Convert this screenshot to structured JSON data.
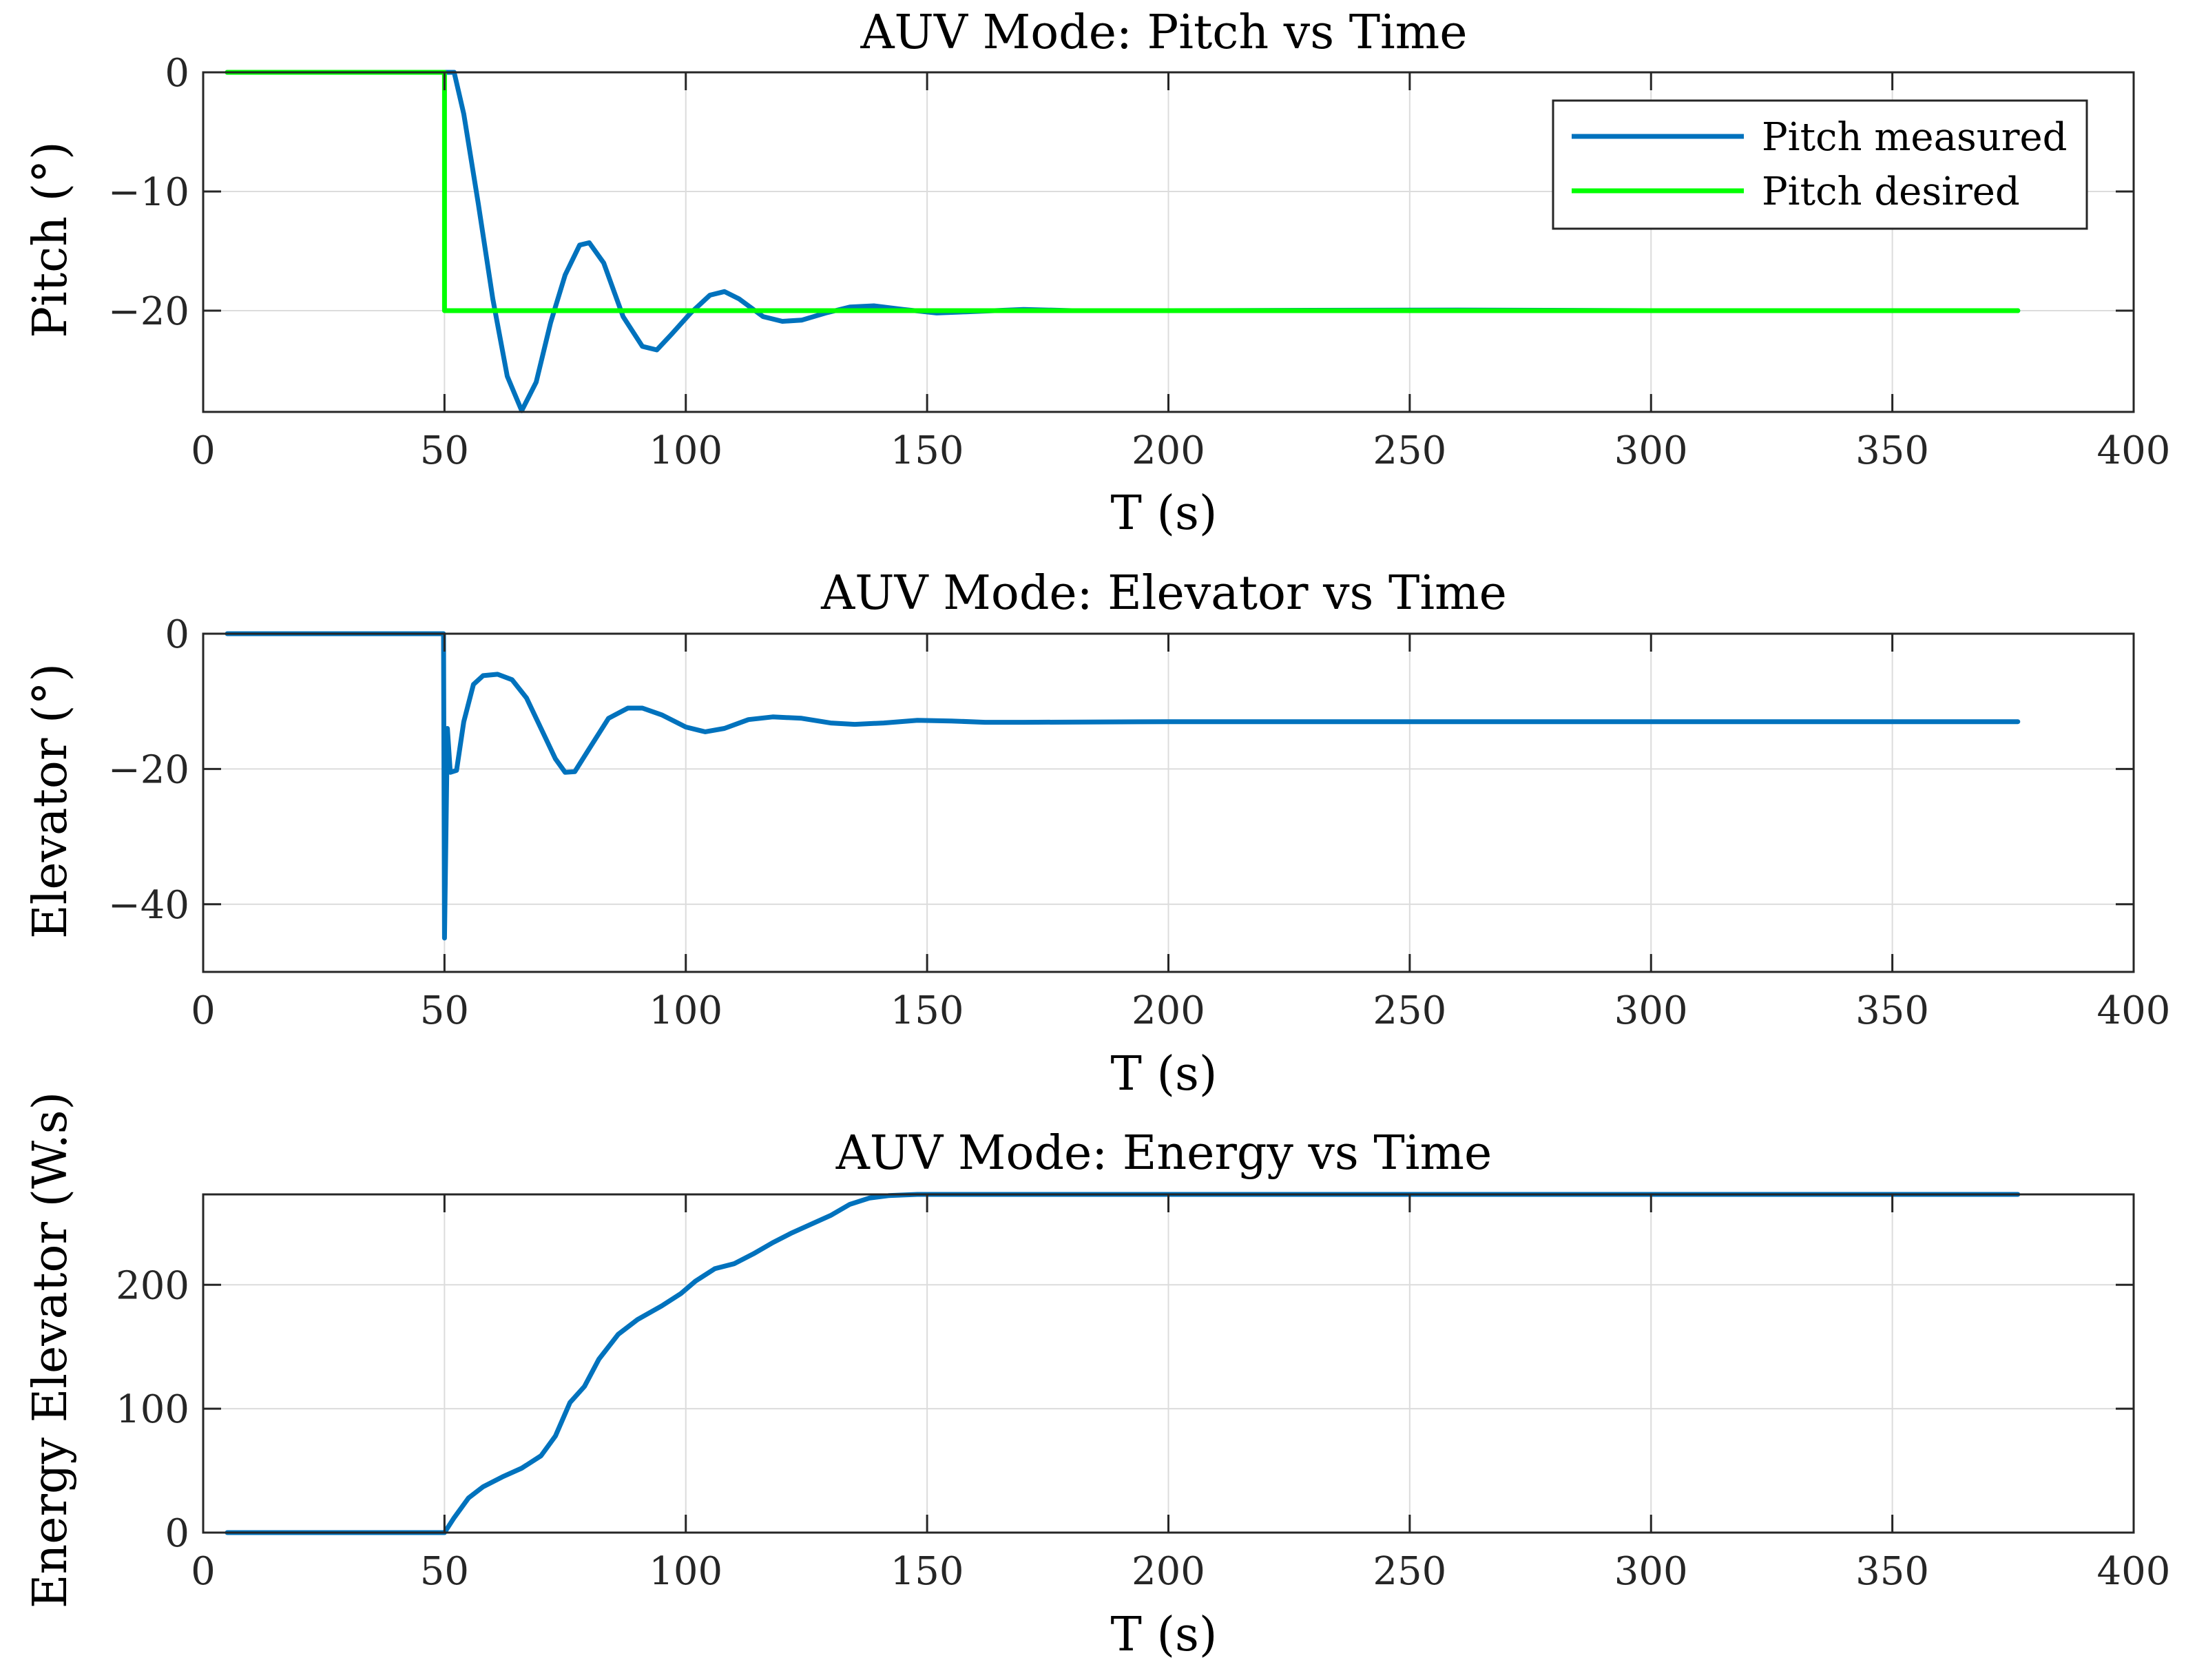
{
  "chart_data": [
    {
      "type": "line",
      "title": "AUV Mode: Pitch vs Time",
      "xlabel": "T (s)",
      "ylabel": "Pitch (°)",
      "xlim": [
        0,
        400
      ],
      "ylim": [
        -28.5,
        0
      ],
      "xticks": [
        0,
        50,
        100,
        150,
        200,
        250,
        300,
        350,
        400
      ],
      "yticks": [
        0,
        -10,
        -20
      ],
      "ytick_labels": [
        "0",
        "−10",
        "−20"
      ],
      "grid": true,
      "legend": "top-right",
      "series": [
        {
          "name": "Pitch measured",
          "color": "#0072BD",
          "points": [
            [
              5,
              0
            ],
            [
              50,
              0
            ],
            [
              52,
              0
            ],
            [
              54,
              -3.5
            ],
            [
              57,
              -11
            ],
            [
              60,
              -19
            ],
            [
              63,
              -25.5
            ],
            [
              66,
              -28.4
            ],
            [
              69,
              -26
            ],
            [
              72,
              -21
            ],
            [
              75,
              -17
            ],
            [
              78,
              -14.5
            ],
            [
              80,
              -14.3
            ],
            [
              83,
              -16
            ],
            [
              87,
              -20.5
            ],
            [
              91,
              -23
            ],
            [
              94,
              -23.3
            ],
            [
              97,
              -22
            ],
            [
              101,
              -20.2
            ],
            [
              105,
              -18.7
            ],
            [
              108,
              -18.4
            ],
            [
              111,
              -19
            ],
            [
              116,
              -20.5
            ],
            [
              120,
              -20.9
            ],
            [
              124,
              -20.8
            ],
            [
              129,
              -20.2
            ],
            [
              134,
              -19.7
            ],
            [
              139,
              -19.6
            ],
            [
              145,
              -19.9
            ],
            [
              152,
              -20.2
            ],
            [
              158,
              -20.1
            ],
            [
              164,
              -20
            ],
            [
              170,
              -19.9
            ],
            [
              180,
              -20
            ],
            [
              200,
              -20
            ],
            [
              260,
              -19.95
            ],
            [
              300,
              -20
            ],
            [
              376,
              -20
            ]
          ]
        },
        {
          "name": "Pitch desired",
          "color": "#00FF00",
          "points": [
            [
              5,
              0
            ],
            [
              50,
              0
            ],
            [
              50,
              -20
            ],
            [
              376,
              -20
            ]
          ]
        }
      ]
    },
    {
      "type": "line",
      "title": "AUV Mode: Elevator vs Time",
      "xlabel": "T (s)",
      "ylabel": "Elevator (°)",
      "xlim": [
        0,
        400
      ],
      "ylim": [
        -50,
        0
      ],
      "xticks": [
        0,
        50,
        100,
        150,
        200,
        250,
        300,
        350,
        400
      ],
      "yticks": [
        0,
        -20,
        -40
      ],
      "ytick_labels": [
        "0",
        "−20",
        "−40"
      ],
      "grid": true,
      "series": [
        {
          "name": "Elevator",
          "color": "#0072BD",
          "points": [
            [
              5,
              0
            ],
            [
              49.8,
              0
            ],
            [
              50,
              -45
            ],
            [
              50.6,
              -14
            ],
            [
              51.2,
              -20.5
            ],
            [
              52.5,
              -20.2
            ],
            [
              54,
              -13
            ],
            [
              56,
              -7.5
            ],
            [
              58,
              -6.2
            ],
            [
              61,
              -6
            ],
            [
              64,
              -6.8
            ],
            [
              67,
              -9.5
            ],
            [
              70,
              -14
            ],
            [
              73,
              -18.5
            ],
            [
              75,
              -20.5
            ],
            [
              77,
              -20.4
            ],
            [
              80,
              -17
            ],
            [
              84,
              -12.5
            ],
            [
              88,
              -11
            ],
            [
              91,
              -11
            ],
            [
              95,
              -12
            ],
            [
              100,
              -13.8
            ],
            [
              104,
              -14.5
            ],
            [
              108,
              -14
            ],
            [
              113,
              -12.7
            ],
            [
              118,
              -12.3
            ],
            [
              124,
              -12.5
            ],
            [
              130,
              -13.2
            ],
            [
              135,
              -13.4
            ],
            [
              141,
              -13.2
            ],
            [
              148,
              -12.8
            ],
            [
              155,
              -12.9
            ],
            [
              162,
              -13.1
            ],
            [
              170,
              -13.1
            ],
            [
              200,
              -13
            ],
            [
              250,
              -13
            ],
            [
              300,
              -13
            ],
            [
              350,
              -13
            ],
            [
              376,
              -13
            ]
          ]
        }
      ]
    },
    {
      "type": "line",
      "title": "AUV Mode: Energy vs Time",
      "xlabel": "T (s)",
      "ylabel": "Energy Elevator (W.s)",
      "xlim": [
        0,
        400
      ],
      "ylim": [
        0,
        273
      ],
      "xticks": [
        0,
        50,
        100,
        150,
        200,
        250,
        300,
        350,
        400
      ],
      "yticks": [
        0,
        100,
        200
      ],
      "ytick_labels": [
        "0",
        "100",
        "200"
      ],
      "grid": true,
      "series": [
        {
          "name": "Energy Elevator",
          "color": "#0072BD",
          "points": [
            [
              5,
              0
            ],
            [
              50,
              0
            ],
            [
              52,
              12
            ],
            [
              55,
              28
            ],
            [
              58,
              37
            ],
            [
              62,
              45
            ],
            [
              66,
              52
            ],
            [
              70,
              62
            ],
            [
              73,
              78
            ],
            [
              76,
              105
            ],
            [
              79,
              118
            ],
            [
              82,
              140
            ],
            [
              86,
              160
            ],
            [
              90,
              172
            ],
            [
              95,
              183
            ],
            [
              99,
              193
            ],
            [
              102,
              203
            ],
            [
              106,
              213
            ],
            [
              110,
              217
            ],
            [
              114,
              225
            ],
            [
              118,
              234
            ],
            [
              122,
              242
            ],
            [
              126,
              249
            ],
            [
              130,
              256
            ],
            [
              134,
              265
            ],
            [
              138,
              270
            ],
            [
              142,
              272
            ],
            [
              148,
              273
            ],
            [
              200,
              273
            ],
            [
              376,
              273
            ]
          ]
        }
      ]
    }
  ]
}
